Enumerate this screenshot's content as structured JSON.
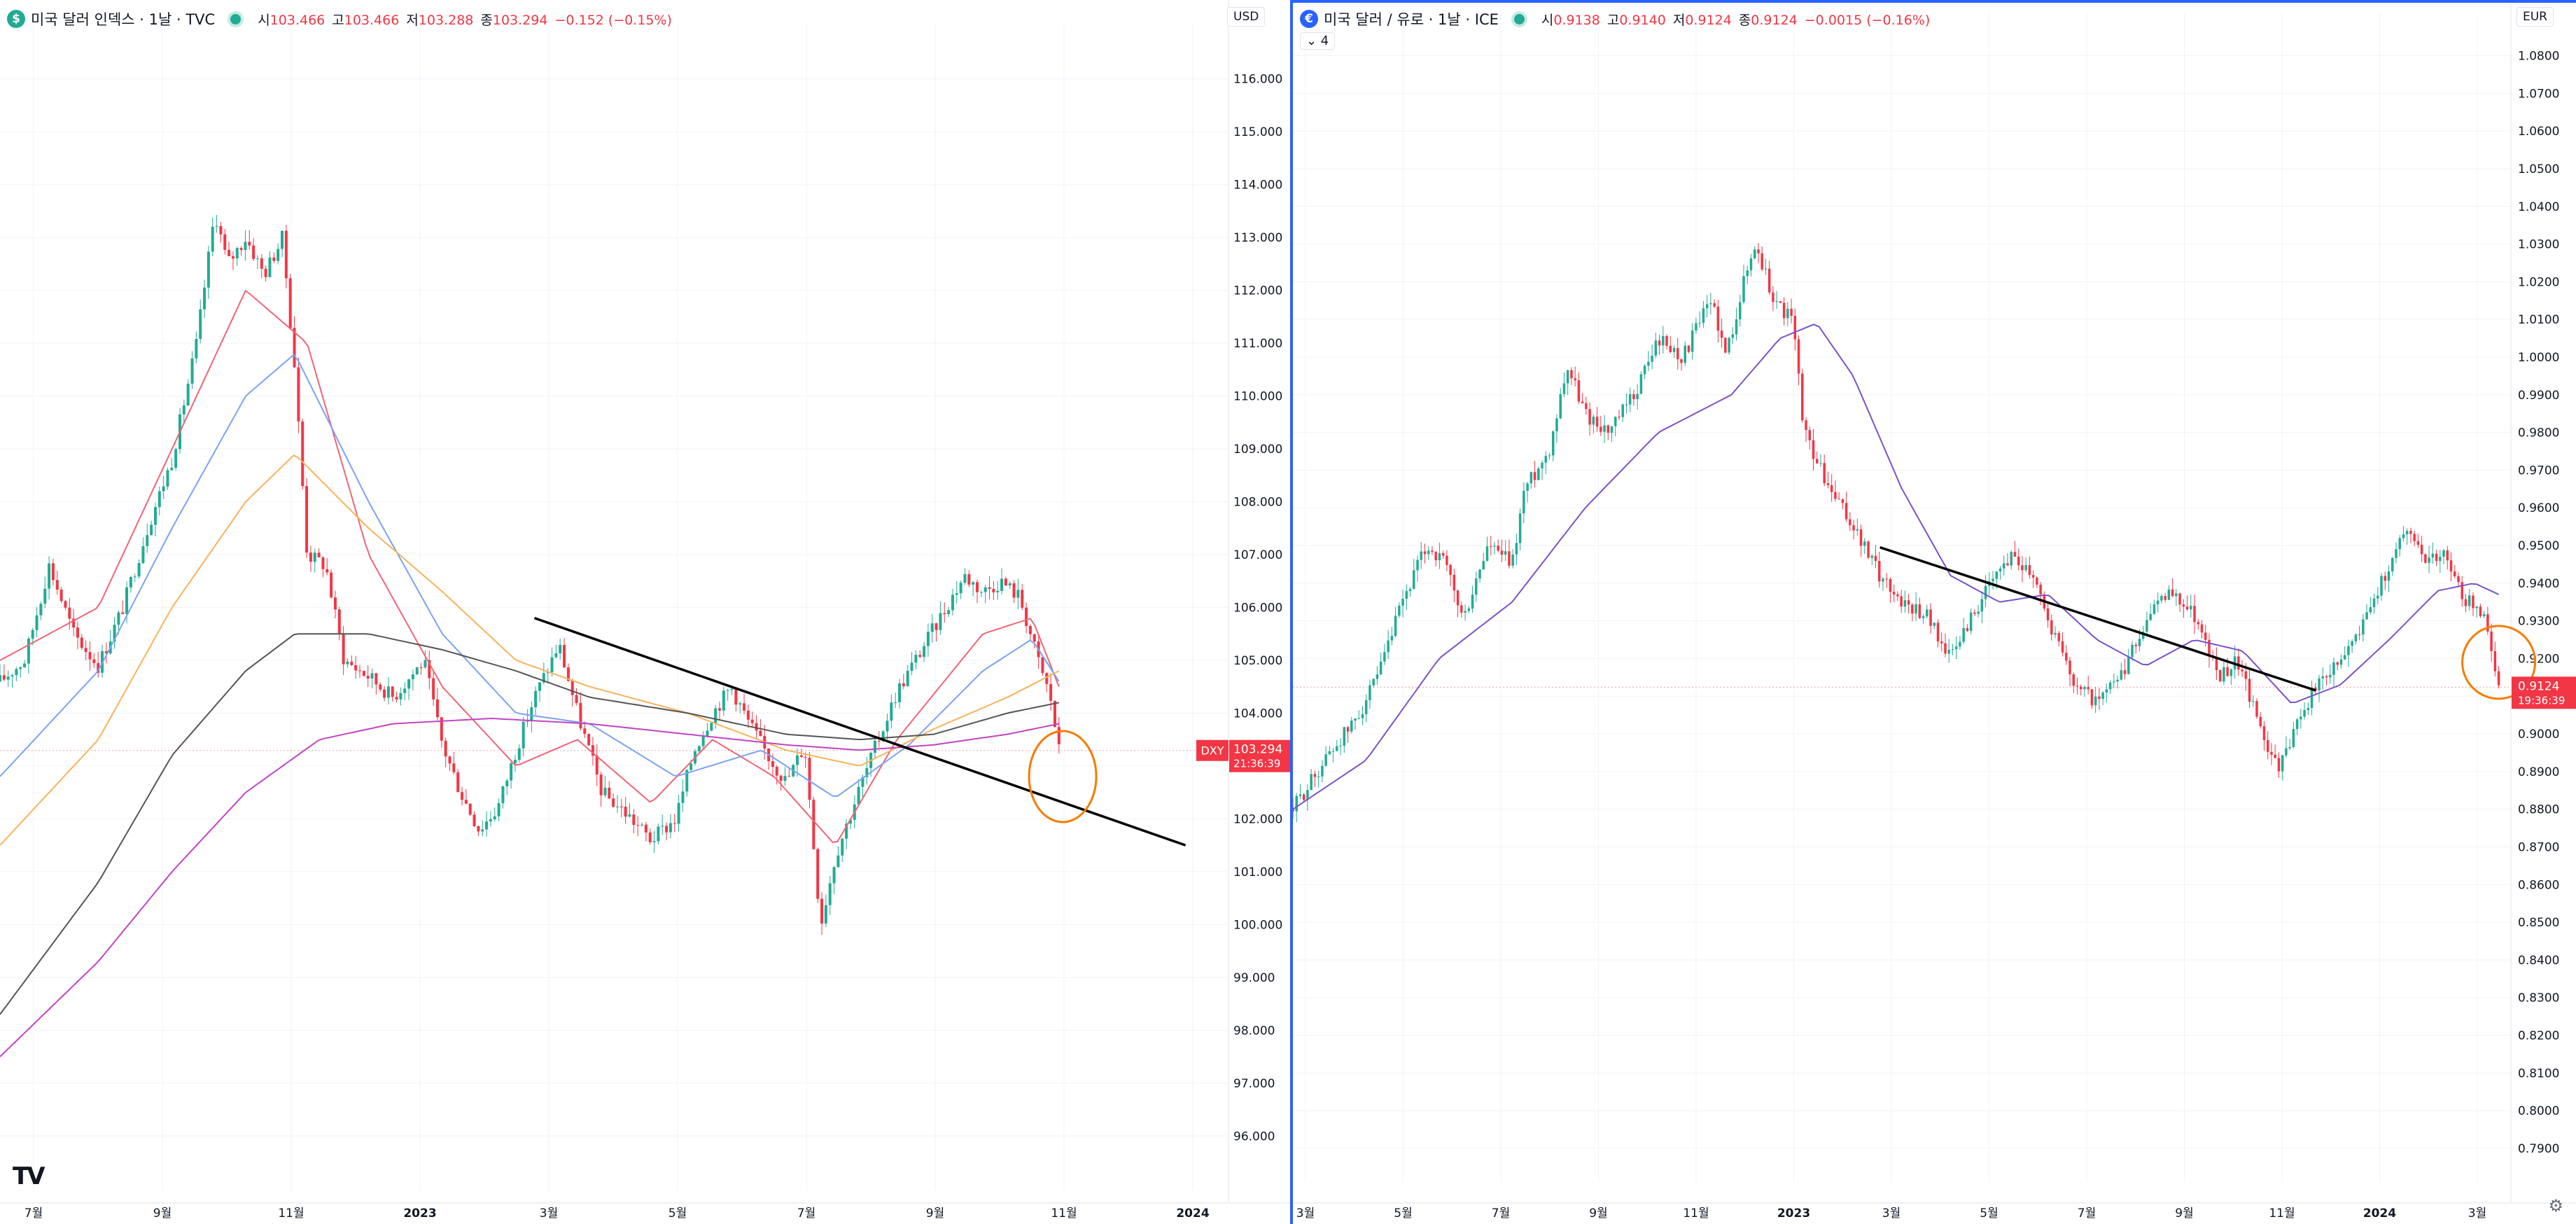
{
  "left_chart": {
    "symbol_title": "미국 달러 인덱스 · 1날 · TVC",
    "symbol_icon": "dollar-logo-icon",
    "ohlc": {
      "open_label": "시",
      "open": "103.466",
      "high_label": "고",
      "high": "103.466",
      "low_label": "저",
      "low": "103.288",
      "close_label": "종",
      "close": "103.294",
      "change": "−0.152 (−0.15%)"
    },
    "currency": "USD",
    "ticker_badge": "DXY",
    "last_price": "103.294",
    "countdown": "21:36:39",
    "colors": {
      "up": "#22ab94",
      "down": "#f23645",
      "trendline": "#000000",
      "circle": "#f57c00"
    },
    "y_ticks": [
      "116.000",
      "115.000",
      "114.000",
      "113.000",
      "112.000",
      "111.000",
      "110.000",
      "109.000",
      "108.000",
      "107.000",
      "106.000",
      "105.000",
      "104.000",
      "103.000",
      "102.000",
      "101.000",
      "100.000",
      "99.000",
      "98.000",
      "97.000",
      "96.000"
    ],
    "x_ticks": [
      "7월",
      "9월",
      "11월",
      "2023",
      "3월",
      "5월",
      "7월",
      "9월",
      "11월",
      "2024"
    ],
    "chart_data": {
      "type": "candlestick",
      "ylim": [
        95.5,
        116.5
      ],
      "close_path": [
        [
          0,
          104.6
        ],
        [
          0.02,
          105.0
        ],
        [
          0.04,
          106.8
        ],
        [
          0.06,
          105.5
        ],
        [
          0.08,
          104.9
        ],
        [
          0.1,
          106.0
        ],
        [
          0.12,
          107.5
        ],
        [
          0.14,
          108.8
        ],
        [
          0.16,
          111.0
        ],
        [
          0.175,
          113.5
        ],
        [
          0.185,
          112.5
        ],
        [
          0.2,
          113.0
        ],
        [
          0.215,
          112.3
        ],
        [
          0.23,
          113.0
        ],
        [
          0.24,
          110.5
        ],
        [
          0.25,
          107.0
        ],
        [
          0.265,
          106.8
        ],
        [
          0.28,
          105.0
        ],
        [
          0.3,
          104.7
        ],
        [
          0.32,
          104.3
        ],
        [
          0.345,
          105.0
        ],
        [
          0.36,
          103.4
        ],
        [
          0.375,
          102.5
        ],
        [
          0.39,
          101.8
        ],
        [
          0.405,
          102.2
        ],
        [
          0.42,
          103.3
        ],
        [
          0.435,
          104.3
        ],
        [
          0.455,
          105.3
        ],
        [
          0.47,
          104.0
        ],
        [
          0.49,
          102.5
        ],
        [
          0.51,
          102.1
        ],
        [
          0.53,
          101.6
        ],
        [
          0.55,
          102.0
        ],
        [
          0.565,
          103.3
        ],
        [
          0.58,
          104.0
        ],
        [
          0.595,
          104.5
        ],
        [
          0.61,
          103.8
        ],
        [
          0.625,
          103.2
        ],
        [
          0.64,
          102.7
        ],
        [
          0.655,
          103.4
        ],
        [
          0.668,
          100.0
        ],
        [
          0.68,
          101.3
        ],
        [
          0.7,
          102.6
        ],
        [
          0.715,
          103.5
        ],
        [
          0.73,
          104.4
        ],
        [
          0.75,
          105.2
        ],
        [
          0.77,
          106.0
        ],
        [
          0.785,
          106.6
        ],
        [
          0.8,
          106.3
        ],
        [
          0.815,
          106.5
        ],
        [
          0.83,
          106.2
        ],
        [
          0.845,
          105.0
        ],
        [
          0.855,
          104.3
        ],
        [
          0.862,
          103.3
        ]
      ],
      "moving_averages": [
        {
          "name": "MA1",
          "color": "#f06575",
          "points": [
            [
              0,
              105.0
            ],
            [
              0.08,
              106.0
            ],
            [
              0.14,
              109.0
            ],
            [
              0.2,
              112.0
            ],
            [
              0.25,
              111.0
            ],
            [
              0.3,
              107.0
            ],
            [
              0.36,
              104.5
            ],
            [
              0.42,
              103.0
            ],
            [
              0.47,
              103.5
            ],
            [
              0.53,
              102.3
            ],
            [
              0.58,
              103.5
            ],
            [
              0.63,
              102.8
            ],
            [
              0.68,
              101.5
            ],
            [
              0.73,
              103.5
            ],
            [
              0.8,
              105.5
            ],
            [
              0.84,
              105.8
            ],
            [
              0.862,
              104.5
            ]
          ]
        },
        {
          "name": "MA2",
          "color": "#7ba3f0",
          "points": [
            [
              0,
              102.8
            ],
            [
              0.08,
              104.8
            ],
            [
              0.14,
              107.5
            ],
            [
              0.2,
              110.0
            ],
            [
              0.24,
              110.8
            ],
            [
              0.3,
              108.0
            ],
            [
              0.36,
              105.5
            ],
            [
              0.42,
              104.0
            ],
            [
              0.48,
              103.8
            ],
            [
              0.55,
              102.8
            ],
            [
              0.62,
              103.3
            ],
            [
              0.68,
              102.4
            ],
            [
              0.74,
              103.4
            ],
            [
              0.8,
              104.8
            ],
            [
              0.84,
              105.4
            ],
            [
              0.862,
              104.6
            ]
          ]
        },
        {
          "name": "MA3",
          "color": "#f7b35c",
          "points": [
            [
              0,
              101.5
            ],
            [
              0.08,
              103.5
            ],
            [
              0.14,
              106.0
            ],
            [
              0.2,
              108.0
            ],
            [
              0.24,
              108.9
            ],
            [
              0.3,
              107.5
            ],
            [
              0.36,
              106.3
            ],
            [
              0.42,
              105.0
            ],
            [
              0.48,
              104.5
            ],
            [
              0.56,
              104.0
            ],
            [
              0.64,
              103.3
            ],
            [
              0.7,
              103.0
            ],
            [
              0.76,
              103.7
            ],
            [
              0.82,
              104.3
            ],
            [
              0.862,
              104.8
            ]
          ]
        },
        {
          "name": "MA4",
          "color": "#555555",
          "points": [
            [
              0,
              98.3
            ],
            [
              0.08,
              100.8
            ],
            [
              0.14,
              103.2
            ],
            [
              0.2,
              104.8
            ],
            [
              0.24,
              105.5
            ],
            [
              0.3,
              105.5
            ],
            [
              0.36,
              105.2
            ],
            [
              0.42,
              104.8
            ],
            [
              0.48,
              104.3
            ],
            [
              0.56,
              104.0
            ],
            [
              0.64,
              103.6
            ],
            [
              0.7,
              103.5
            ],
            [
              0.76,
              103.6
            ],
            [
              0.82,
              104.0
            ],
            [
              0.862,
              104.2
            ]
          ]
        },
        {
          "name": "MA5",
          "color": "#c244c2",
          "points": [
            [
              0,
              97.5
            ],
            [
              0.08,
              99.3
            ],
            [
              0.14,
              101.0
            ],
            [
              0.2,
              102.5
            ],
            [
              0.26,
              103.5
            ],
            [
              0.32,
              103.8
            ],
            [
              0.4,
              103.9
            ],
            [
              0.48,
              103.8
            ],
            [
              0.56,
              103.6
            ],
            [
              0.64,
              103.4
            ],
            [
              0.7,
              103.3
            ],
            [
              0.76,
              103.4
            ],
            [
              0.82,
              103.6
            ],
            [
              0.862,
              103.8
            ]
          ]
        }
      ],
      "trendline": [
        [
          0.435,
          105.8
        ],
        [
          0.965,
          101.5
        ]
      ],
      "circle_center": [
        0.865,
        102.8
      ]
    }
  },
  "right_chart": {
    "symbol_title": "미국 달러 / 유로 · 1날 · ICE",
    "symbol_icon": "flag-logo-icon",
    "ohlc": {
      "open_label": "시",
      "open": "0.9138",
      "high_label": "고",
      "high": "0.9140",
      "low_label": "저",
      "low": "0.9124",
      "close_label": "종",
      "close": "0.9124",
      "change": "−0.0015 (−0.16%)"
    },
    "collapse_label": "⌄ 4",
    "currency": "EUR",
    "last_price": "0.9124",
    "countdown": "19:36:39",
    "colors": {
      "up": "#22ab94",
      "down": "#f23645",
      "trendline": "#000000",
      "circle": "#f57c00",
      "ma": "#7b52c8"
    },
    "y_ticks": [
      "1.0800",
      "1.0700",
      "1.0600",
      "1.0500",
      "1.0400",
      "1.0300",
      "1.0200",
      "1.0100",
      "1.0000",
      "0.9900",
      "0.9800",
      "0.9700",
      "0.9600",
      "0.9500",
      "0.9400",
      "0.9300",
      "0.9200",
      "0.9100",
      "0.9000",
      "0.8900",
      "0.8800",
      "0.8700",
      "0.8600",
      "0.8500",
      "0.8400",
      "0.8300",
      "0.8200",
      "0.8100",
      "0.8000",
      "0.7900"
    ],
    "x_ticks": [
      "3월",
      "5월",
      "7월",
      "9월",
      "11월",
      "2023",
      "3월",
      "5월",
      "7월",
      "9월",
      "11월",
      "2024",
      "3월"
    ],
    "chart_data": {
      "type": "candlestick",
      "ylim": [
        0.7885,
        1.084
      ],
      "close_path": [
        [
          0,
          0.88
        ],
        [
          0.03,
          0.895
        ],
        [
          0.05,
          0.903
        ],
        [
          0.07,
          0.915
        ],
        [
          0.09,
          0.935
        ],
        [
          0.11,
          0.95
        ],
        [
          0.125,
          0.945
        ],
        [
          0.14,
          0.93
        ],
        [
          0.16,
          0.95
        ],
        [
          0.18,
          0.945
        ],
        [
          0.19,
          0.965
        ],
        [
          0.21,
          0.975
        ],
        [
          0.225,
          0.998
        ],
        [
          0.24,
          0.985
        ],
        [
          0.26,
          0.98
        ],
        [
          0.28,
          0.99
        ],
        [
          0.3,
          1.005
        ],
        [
          0.32,
          1.0
        ],
        [
          0.335,
          1.01
        ],
        [
          0.345,
          1.015
        ],
        [
          0.355,
          1.0
        ],
        [
          0.37,
          1.02
        ],
        [
          0.38,
          1.03
        ],
        [
          0.395,
          1.015
        ],
        [
          0.41,
          1.01
        ],
        [
          0.42,
          0.98
        ],
        [
          0.44,
          0.965
        ],
        [
          0.46,
          0.955
        ],
        [
          0.48,
          0.943
        ],
        [
          0.5,
          0.935
        ],
        [
          0.52,
          0.932
        ],
        [
          0.54,
          0.92
        ],
        [
          0.555,
          0.93
        ],
        [
          0.57,
          0.938
        ],
        [
          0.59,
          0.948
        ],
        [
          0.61,
          0.942
        ],
        [
          0.62,
          0.93
        ],
        [
          0.64,
          0.915
        ],
        [
          0.66,
          0.908
        ],
        [
          0.68,
          0.915
        ],
        [
          0.7,
          0.93
        ],
        [
          0.72,
          0.938
        ],
        [
          0.74,
          0.932
        ],
        [
          0.76,
          0.915
        ],
        [
          0.775,
          0.92
        ],
        [
          0.79,
          0.905
        ],
        [
          0.81,
          0.89
        ],
        [
          0.825,
          0.905
        ],
        [
          0.84,
          0.912
        ],
        [
          0.86,
          0.92
        ],
        [
          0.88,
          0.93
        ],
        [
          0.9,
          0.945
        ],
        [
          0.915,
          0.955
        ],
        [
          0.93,
          0.947
        ],
        [
          0.945,
          0.948
        ],
        [
          0.955,
          0.94
        ],
        [
          0.965,
          0.935
        ],
        [
          0.98,
          0.93
        ],
        [
          0.99,
          0.912
        ]
      ],
      "moving_averages": [
        {
          "name": "MA",
          "color": "#7b52c8",
          "points": [
            [
              0,
              0.88
            ],
            [
              0.06,
              0.893
            ],
            [
              0.12,
              0.92
            ],
            [
              0.18,
              0.935
            ],
            [
              0.24,
              0.96
            ],
            [
              0.3,
              0.98
            ],
            [
              0.36,
              0.99
            ],
            [
              0.4,
              1.005
            ],
            [
              0.43,
              1.009
            ],
            [
              0.46,
              0.995
            ],
            [
              0.5,
              0.965
            ],
            [
              0.54,
              0.942
            ],
            [
              0.58,
              0.935
            ],
            [
              0.62,
              0.937
            ],
            [
              0.66,
              0.925
            ],
            [
              0.7,
              0.918
            ],
            [
              0.74,
              0.925
            ],
            [
              0.78,
              0.922
            ],
            [
              0.82,
              0.908
            ],
            [
              0.86,
              0.913
            ],
            [
              0.9,
              0.925
            ],
            [
              0.94,
              0.938
            ],
            [
              0.97,
              0.94
            ],
            [
              0.99,
              0.937
            ]
          ]
        }
      ],
      "trendline": [
        [
          0.482,
          0.9495
        ],
        [
          0.84,
          0.9115
        ]
      ],
      "circle_center": [
        0.99,
        0.919
      ]
    }
  }
}
